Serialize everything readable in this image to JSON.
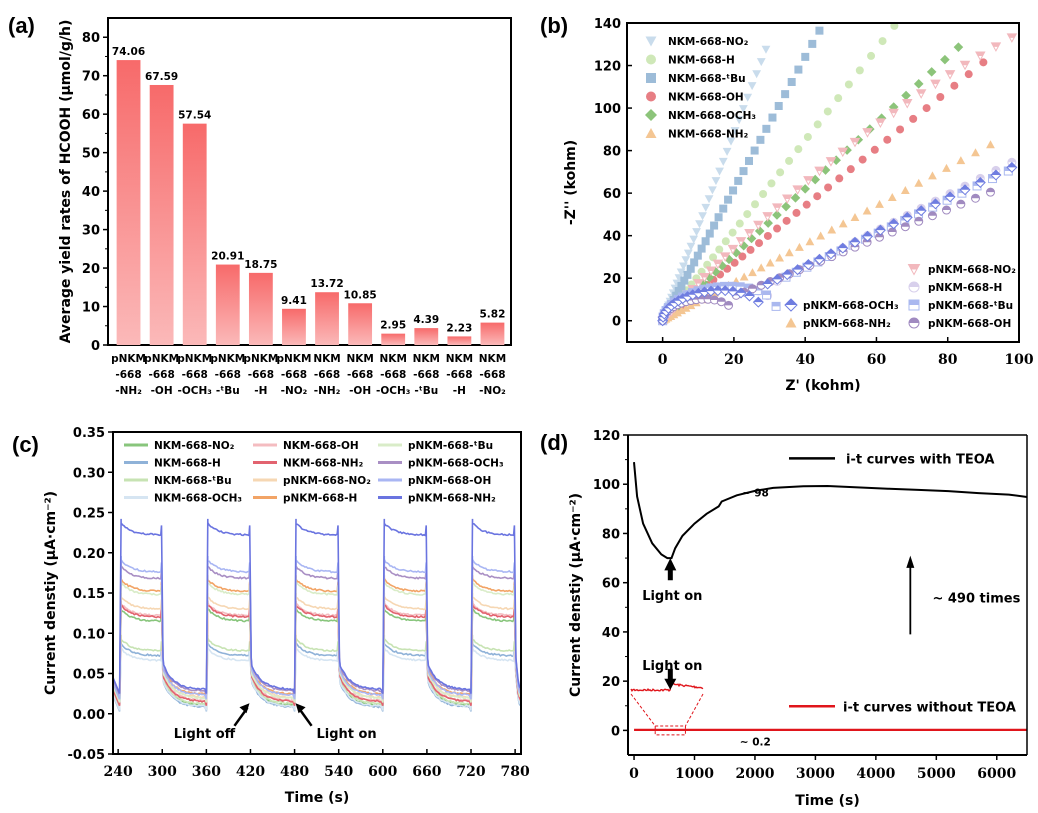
{
  "chart_data": [
    {
      "panel": "(a)",
      "type": "bar",
      "title": "",
      "xlabel": "",
      "ylabel": "Average yield rates of HCOOH (µmol/g/h)",
      "ylim": [
        0,
        85
      ],
      "yticks": [
        0,
        10,
        20,
        30,
        40,
        50,
        60,
        70,
        80
      ],
      "categories": [
        [
          "pNKM",
          "-668",
          "-NH₂"
        ],
        [
          "pNKM",
          "-668",
          "-OH"
        ],
        [
          "pNKM",
          "-668",
          "-OCH₃"
        ],
        [
          "pNKM",
          "-668",
          "-ᵗBu"
        ],
        [
          "pNKM",
          "-668",
          "-H"
        ],
        [
          "pNKM",
          "-668",
          "-NO₂"
        ],
        [
          "NKM",
          "-668",
          "-NH₂"
        ],
        [
          "NKM",
          "-668",
          "-OH"
        ],
        [
          "NKM",
          "-668",
          "-OCH₃"
        ],
        [
          "NKM",
          "-668",
          "-ᵗBu"
        ],
        [
          "NKM",
          "-668",
          "-H"
        ],
        [
          "NKM",
          "-668",
          "-NO₂"
        ]
      ],
      "values": [
        74.06,
        67.59,
        57.54,
        20.91,
        18.75,
        9.41,
        13.72,
        10.85,
        2.95,
        4.39,
        2.23,
        5.82
      ],
      "data_labels": [
        "74.06",
        "67.59",
        "57.54",
        "20.91",
        "18.75",
        "9.41",
        "13.72",
        "10.85",
        "2.95",
        "4.39",
        "2.23",
        "5.82"
      ],
      "bar_color_top": "#f76a6a",
      "bar_color_bottom": "#fbb6b6"
    },
    {
      "panel": "(b)",
      "type": "scatter",
      "xlabel": "Z' (kohm)",
      "ylabel": "-Z'' (kohm)",
      "xlim": [
        -10,
        100
      ],
      "ylim": [
        -10,
        140
      ],
      "xticks": [
        0,
        20,
        40,
        60,
        80,
        100
      ],
      "yticks": [
        0,
        20,
        40,
        60,
        80,
        100,
        120,
        140
      ],
      "legend_top_left": [
        "NKM-668-NO₂",
        "NKM-668-H",
        "NKM-668-ᵗBu",
        "NKM-668-OH",
        "NKM-668-OCH₃",
        "NKM-668-NH₂"
      ],
      "legend_bottom_right": [
        "pNKM-668-OCH₃",
        "pNKM-668-NH₂",
        "pNKM-668-NO₂",
        "pNKM-668-H",
        "pNKM-668-ᵗBu",
        "pNKM-668-OH"
      ],
      "series": [
        {
          "name": "NKM-668-NO₂",
          "marker": "triangle-down",
          "color": "#c9dcec",
          "slope": 4.4,
          "curv": 0,
          "xmax": 29
        },
        {
          "name": "NKM-668-H",
          "marker": "circle",
          "color": "#cfe8b8",
          "slope": 2.1,
          "curv": 0.0005,
          "xmax": 79
        },
        {
          "name": "NKM-668-ᵗBu",
          "marker": "square",
          "color": "#9dbcd8",
          "slope": 3.1,
          "curv": 0,
          "xmax": 44
        },
        {
          "name": "NKM-668-OH",
          "marker": "circle",
          "color": "#e77e84",
          "slope": 1.35,
          "curv": 0.0,
          "xmax": 90
        },
        {
          "name": "NKM-668-OCH₃",
          "marker": "diamond",
          "color": "#8cc47a",
          "slope": 1.55,
          "curv": 0.0,
          "xmax": 83
        },
        {
          "name": "NKM-668-NH₂",
          "marker": "triangle-up",
          "color": "#f4c693",
          "slope": 0.9,
          "curv": 0,
          "xmax": 92
        },
        {
          "name": "pNKM-668-NO₂",
          "marker": "triangle-down-half",
          "color": "#f2b8bd",
          "slope": 1.8,
          "curv": -0.0045,
          "xmax": 98
        },
        {
          "name": "pNKM-668-H",
          "marker": "circle-half",
          "color": "#d8d0ec",
          "slope": 0.85,
          "curv": 0,
          "xmax": 98
        },
        {
          "name": "pNKM-668-ᵗBu",
          "marker": "square-half",
          "color": "#aab8ef",
          "slope": 0.8,
          "curv": 0,
          "xmax": 97
        },
        {
          "name": "pNKM-668-OH",
          "marker": "circle-half",
          "color": "#a08ac0",
          "slope": 0.68,
          "curv": 0,
          "xmax": 92
        },
        {
          "name": "pNKM-668-OCH₃",
          "marker": "diamond-half",
          "color": "#6f7de0",
          "slope": 0.8,
          "curv": 0,
          "xmax": 98
        }
      ]
    },
    {
      "panel": "(c)",
      "type": "line",
      "xlabel": "Time (s)",
      "ylabel": "Current denstiy (µA·cm⁻²)",
      "xlim": [
        233,
        788
      ],
      "ylim": [
        -0.05,
        0.35
      ],
      "xticks": [
        240,
        300,
        360,
        420,
        480,
        540,
        600,
        660,
        720,
        780
      ],
      "yticks": [
        "-0.05",
        "0.00",
        "0.05",
        "0.10",
        "0.15",
        "0.20",
        "0.25",
        "0.30",
        "0.35"
      ],
      "light_on_times": [
        242,
        360,
        480,
        600,
        720
      ],
      "light_off_times": [
        300,
        420,
        540,
        660,
        780
      ],
      "annotations": [
        {
          "text": "Light off",
          "time": 420
        },
        {
          "text": "Light on",
          "time": 480
        }
      ],
      "series": [
        {
          "name": "NKM-668-NO₂",
          "color": "#88c57c",
          "on": 0.115,
          "off": 0.01
        },
        {
          "name": "NKM-668-H",
          "color": "#8fb2d8",
          "on": 0.072,
          "off": 0.008
        },
        {
          "name": "NKM-668-ᵗBu",
          "color": "#c7e3b3",
          "on": 0.078,
          "off": 0.012
        },
        {
          "name": "NKM-668-OCH₃",
          "color": "#d6e5f2",
          "on": 0.066,
          "off": 0.009
        },
        {
          "name": "NKM-668-OH",
          "color": "#f4bcc0",
          "on": 0.122,
          "off": 0.016
        },
        {
          "name": "NKM-668-NH₂",
          "color": "#e2636f",
          "on": 0.12,
          "off": 0.015
        },
        {
          "name": "pNKM-668-NO₂",
          "color": "#f6d7b3",
          "on": 0.13,
          "off": 0.02
        },
        {
          "name": "pNKM-668-H",
          "color": "#f2a466",
          "on": 0.152,
          "off": 0.024
        },
        {
          "name": "pNKM-668-ᵗBu",
          "color": "#d9ecc8",
          "on": 0.148,
          "off": 0.019
        },
        {
          "name": "pNKM-668-OCH₃",
          "color": "#a98fc4",
          "on": 0.168,
          "off": 0.028
        },
        {
          "name": "pNKM-668-OH",
          "color": "#a9b6f3",
          "on": 0.176,
          "off": 0.023
        },
        {
          "name": "pNKM-668-NH₂",
          "color": "#6a74e0",
          "on": 0.222,
          "off": 0.03
        }
      ]
    },
    {
      "panel": "(d)",
      "type": "line",
      "xlabel": "Time (s)",
      "ylabel": "Current denstiy (µA·cm⁻²)",
      "xlim": [
        -100,
        6500
      ],
      "ylim": [
        -10,
        120
      ],
      "xticks": [
        0,
        1000,
        2000,
        3000,
        4000,
        5000,
        6000
      ],
      "yticks": [
        0,
        20,
        40,
        60,
        80,
        100,
        120
      ],
      "series": [
        {
          "name": "i-t curves with TEOA",
          "color": "#000000",
          "points": [
            [
              0,
              109
            ],
            [
              50,
              95
            ],
            [
              150,
              84
            ],
            [
              300,
              76
            ],
            [
              450,
              71.5
            ],
            [
              550,
              70
            ],
            [
              620,
              70
            ],
            [
              680,
              74
            ],
            [
              800,
              79
            ],
            [
              1000,
              84
            ],
            [
              1200,
              88
            ],
            [
              1400,
              91
            ],
            [
              1450,
              93
            ],
            [
              1700,
              95.5
            ],
            [
              2000,
              97.3
            ],
            [
              2300,
              98.5
            ],
            [
              2800,
              99.2
            ],
            [
              3200,
              99.3
            ],
            [
              3700,
              98.7
            ],
            [
              4200,
              98.2
            ],
            [
              4700,
              97.7
            ],
            [
              5200,
              97.2
            ],
            [
              5700,
              96.4
            ],
            [
              6200,
              95.8
            ],
            [
              6500,
              94.8
            ]
          ]
        },
        {
          "name": "i-t curves without TEOA",
          "color": "#e0151b",
          "points": [
            [
              0,
              0.2
            ],
            [
              6500,
              0.2
            ]
          ]
        }
      ],
      "annotations": {
        "with_value": "~ 98",
        "without_value": "~ 0.2",
        "ratio": "~ 490 times",
        "light_on_1": "Light on",
        "light_on_2": "Light on"
      }
    }
  ],
  "panels": {
    "a_label": "(a)",
    "b_label": "(b)",
    "c_label": "(c)",
    "d_label": "(d)"
  }
}
